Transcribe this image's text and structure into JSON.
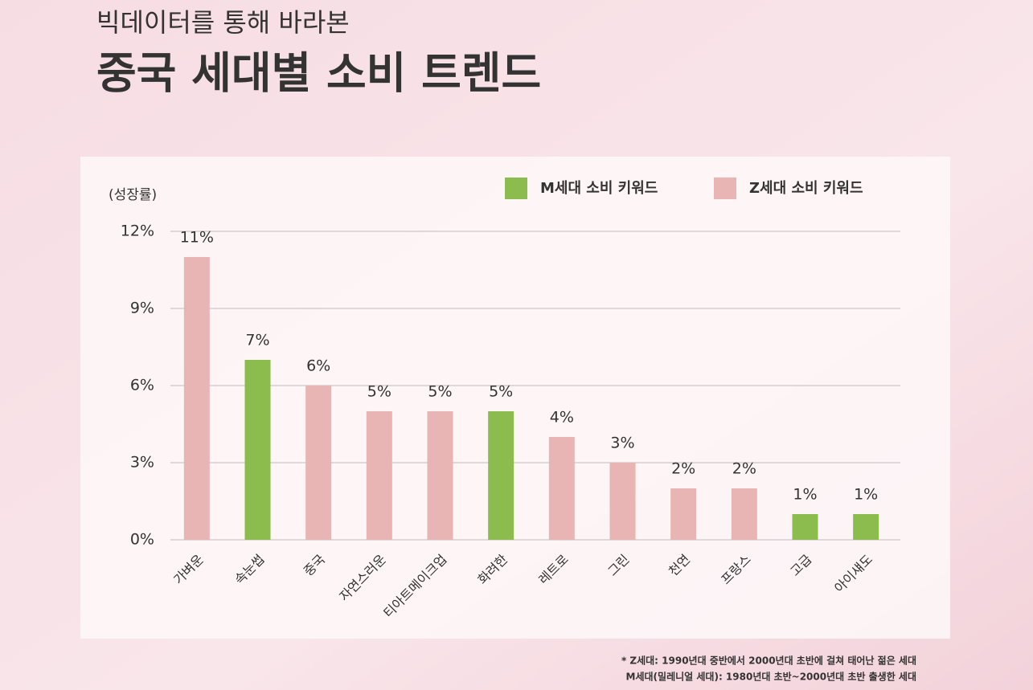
{
  "chart_data": {
    "type": "bar",
    "subtitle": "빅데이터를 통해 바라본",
    "title": "중국 세대별 소비 트렌드",
    "y_label": "(성장률)",
    "categories": [
      "가벼운",
      "속눈썹",
      "중국",
      "자연스러운",
      "티아트메이크업",
      "화려한",
      "레트로",
      "그린",
      "천연",
      "프랑스",
      "고급",
      "아이섀도"
    ],
    "series": [
      {
        "name": "M세대 소비 키워드",
        "color": "#8cbb4e",
        "values": [
          null,
          7,
          null,
          null,
          null,
          5,
          null,
          null,
          null,
          null,
          1,
          1
        ],
        "value_labels": [
          null,
          "7%",
          null,
          null,
          null,
          "5%",
          null,
          null,
          null,
          null,
          "1%",
          "1%"
        ]
      },
      {
        "name": "Z세대 소비 키워드",
        "color": "#e8b4b4",
        "values": [
          11,
          null,
          6,
          5,
          5,
          null,
          4,
          3,
          2,
          2,
          null,
          null
        ],
        "value_labels": [
          "11%",
          null,
          "6%",
          "5%",
          "5%",
          null,
          "4%",
          "3%",
          "2%",
          "2%",
          null,
          null
        ]
      }
    ],
    "ylim": [
      0,
      12
    ],
    "yticks": [
      {
        "value": 0,
        "label": "0%"
      },
      {
        "value": 3,
        "label": "3%"
      },
      {
        "value": 6,
        "label": "6%"
      },
      {
        "value": 9,
        "label": "9%"
      },
      {
        "value": 12,
        "label": "12%"
      }
    ],
    "grid": true,
    "legend": "top",
    "footnotes": [
      "* Z세대: 1990년대 중반에서 2000년대 초반에 걸쳐 태어난 젊은 세대",
      "M세대(밀레니얼 세대): 1980년대 초반~2000년대 초반 출생한 세대"
    ]
  }
}
